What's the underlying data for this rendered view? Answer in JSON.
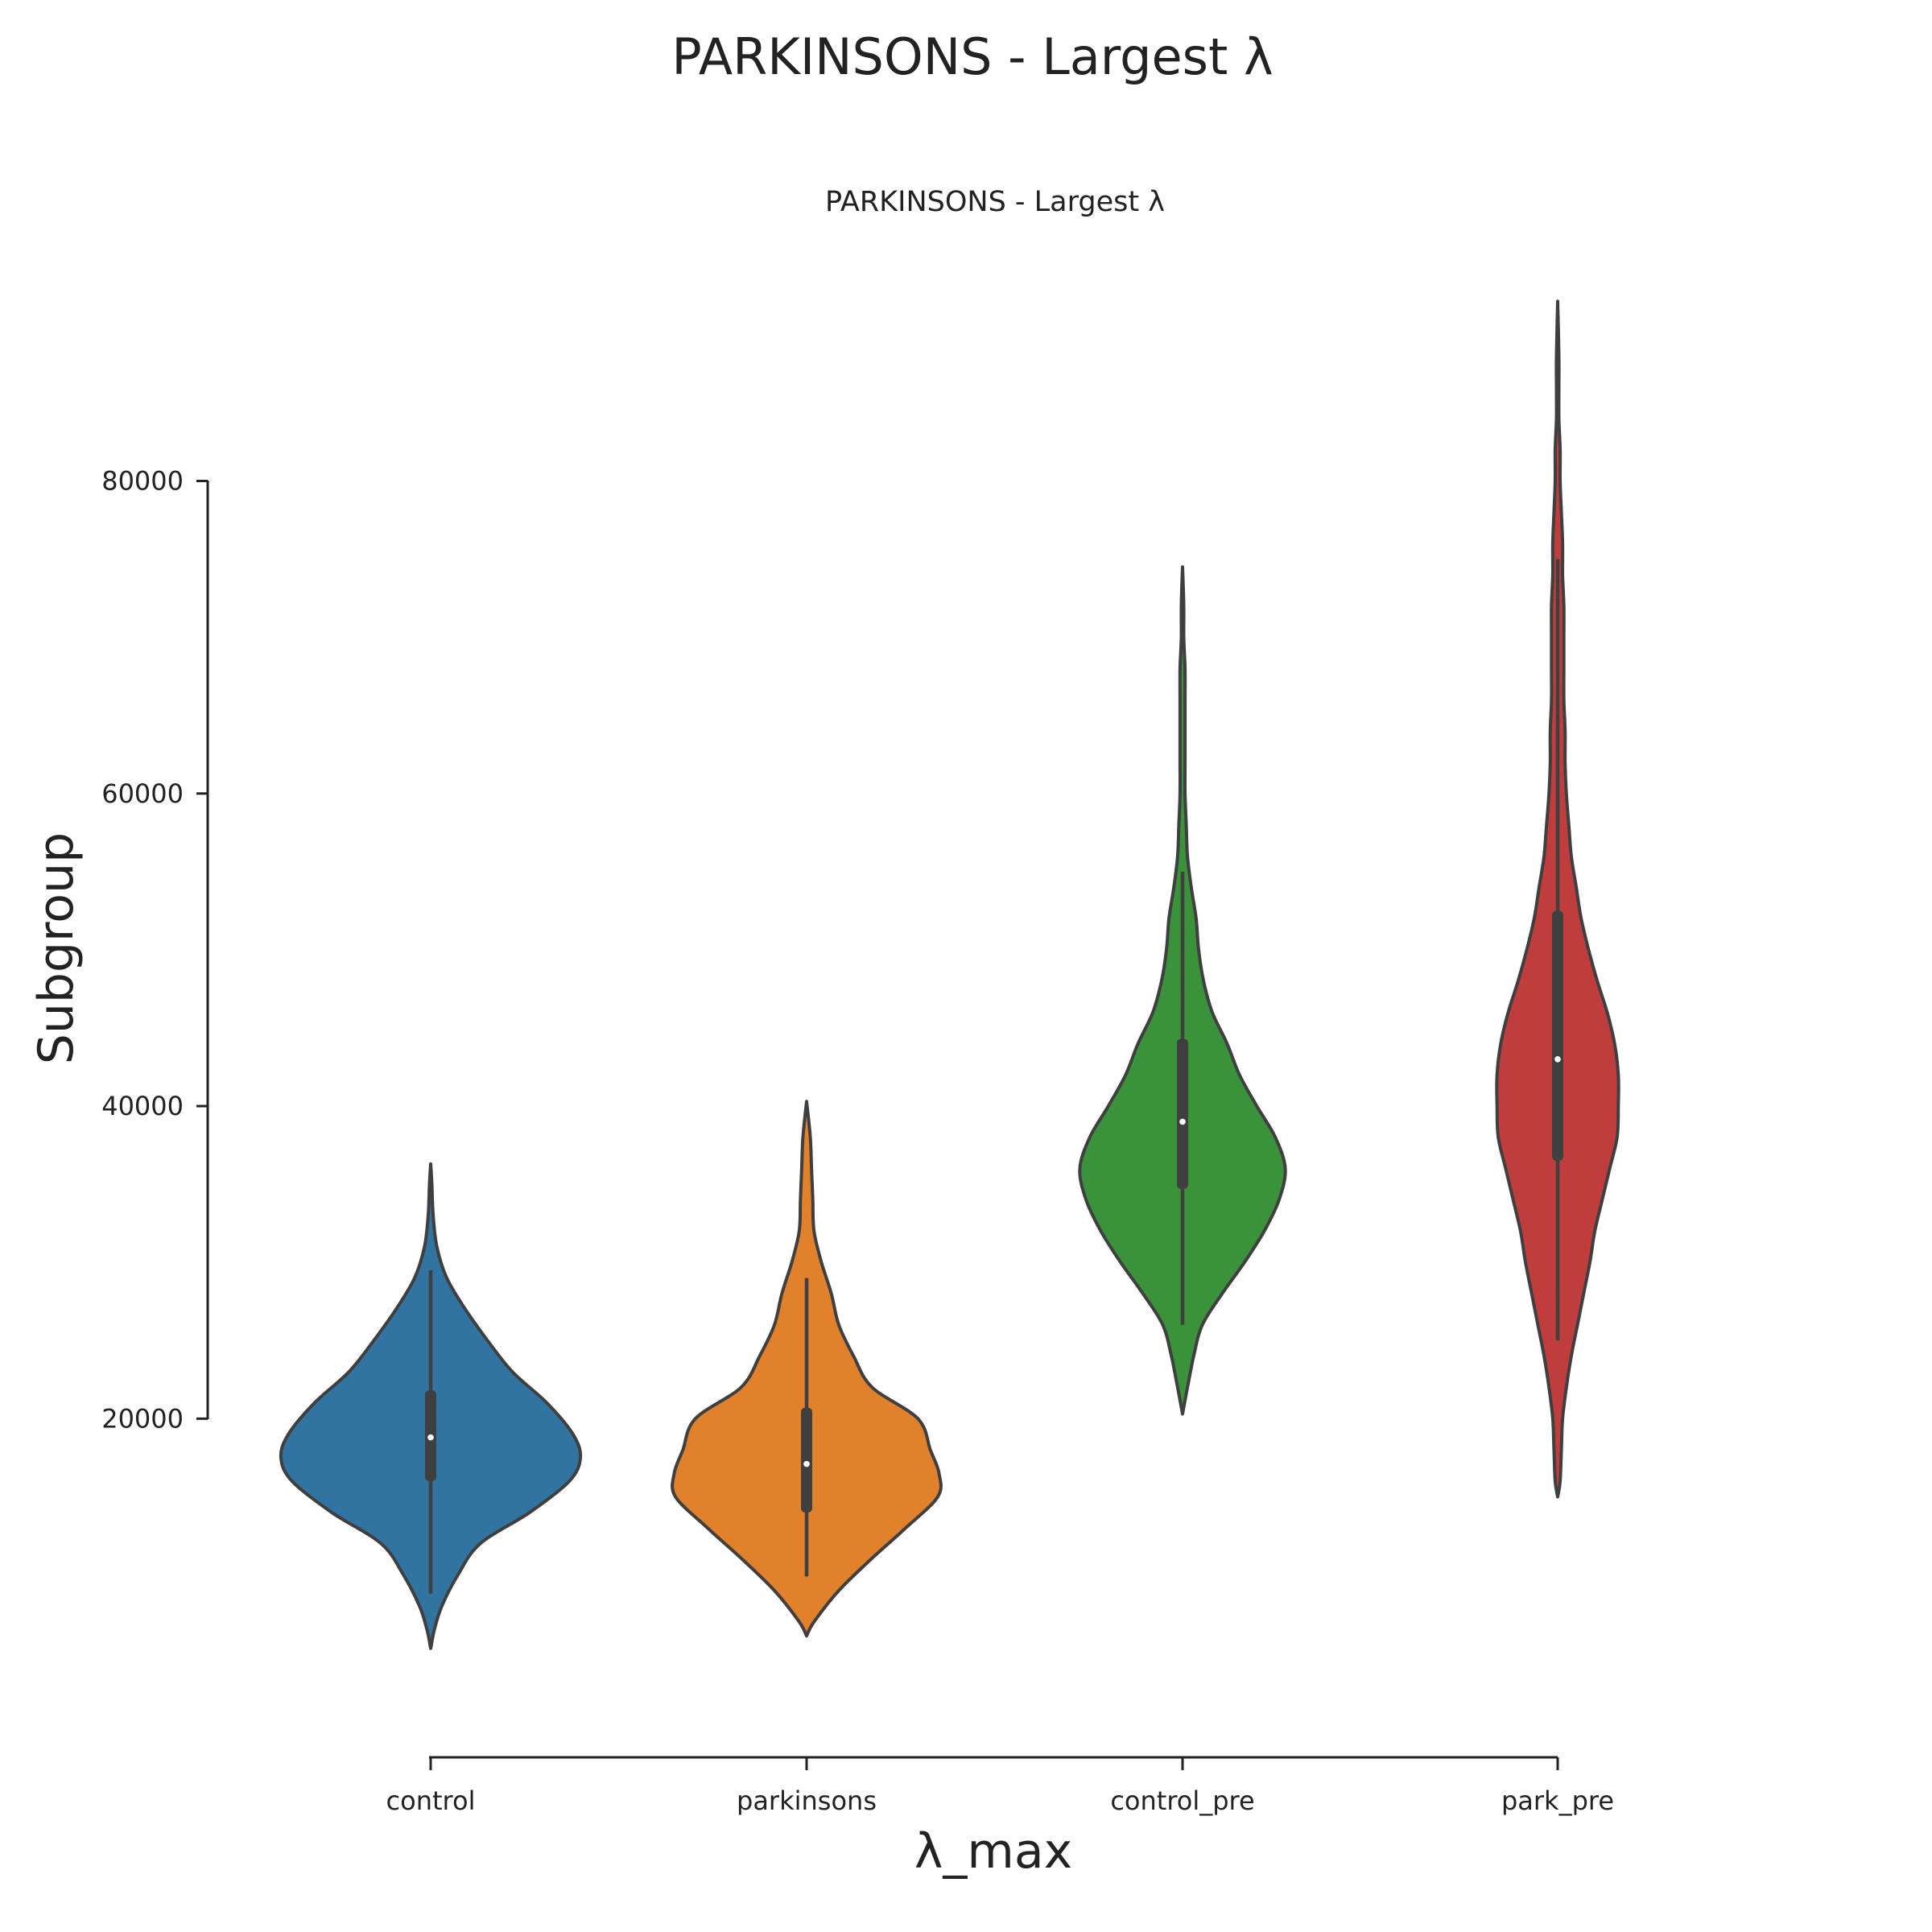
{
  "figure": {
    "suptitle": "PARKINSONS - Largest λ"
  },
  "chart_data": {
    "type": "violin",
    "title": "PARKINSONS - Largest λ",
    "xlabel": "λ_max",
    "ylabel": "Subgroup",
    "yticks": [
      20000,
      40000,
      60000,
      80000
    ],
    "ylim": [
      0,
      94000
    ],
    "grid": false,
    "legend": "none",
    "categories": [
      "control",
      "parkinsons",
      "control_pre",
      "park_pre"
    ],
    "colors": [
      "#3274a1",
      "#e1812c",
      "#3a923a",
      "#c03d3e"
    ],
    "violins": [
      {
        "category": "control",
        "color": "#3274a1",
        "whisker": [
          8800,
          29500
        ],
        "box": [
          16000,
          21800
        ],
        "median": 18800,
        "density": [
          [
            5300,
            0
          ],
          [
            6500,
            3
          ],
          [
            8000,
            9
          ],
          [
            10000,
            22
          ],
          [
            12000,
            40
          ],
          [
            14000,
            80
          ],
          [
            16000,
            112
          ],
          [
            17500,
            121
          ],
          [
            19000,
            115
          ],
          [
            21000,
            94
          ],
          [
            23000,
            66
          ],
          [
            25000,
            46
          ],
          [
            27000,
            28
          ],
          [
            29000,
            13
          ],
          [
            31000,
            5
          ],
          [
            33000,
            2
          ],
          [
            35000,
            1
          ],
          [
            36300,
            0
          ]
        ]
      },
      {
        "category": "parkinsons",
        "color": "#e1812c",
        "whisker": [
          9900,
          29000
        ],
        "box": [
          14000,
          20700
        ],
        "median": 17100,
        "density": [
          [
            6100,
            0
          ],
          [
            7000,
            6
          ],
          [
            9000,
            26
          ],
          [
            11000,
            52
          ],
          [
            13000,
            80
          ],
          [
            15000,
            106
          ],
          [
            16500,
            107
          ],
          [
            18000,
            100
          ],
          [
            20000,
            90
          ],
          [
            22000,
            53
          ],
          [
            24000,
            38
          ],
          [
            26000,
            26
          ],
          [
            28000,
            20
          ],
          [
            30000,
            12
          ],
          [
            32000,
            6
          ],
          [
            34000,
            5
          ],
          [
            36000,
            4
          ],
          [
            38000,
            3
          ],
          [
            40300,
            0
          ]
        ]
      },
      {
        "category": "control_pre",
        "color": "#3a923a",
        "whisker": [
          26000,
          55000
        ],
        "box": [
          34700,
          44300
        ],
        "median": 39000,
        "density": [
          [
            20300,
            0
          ],
          [
            22000,
            4
          ],
          [
            24000,
            9
          ],
          [
            26000,
            16
          ],
          [
            28000,
            32
          ],
          [
            30000,
            50
          ],
          [
            32000,
            66
          ],
          [
            34000,
            78
          ],
          [
            36000,
            83
          ],
          [
            38000,
            75
          ],
          [
            40000,
            60
          ],
          [
            42000,
            46
          ],
          [
            44000,
            36
          ],
          [
            46000,
            24
          ],
          [
            48000,
            17
          ],
          [
            50000,
            13
          ],
          [
            52000,
            11
          ],
          [
            54000,
            7
          ],
          [
            56000,
            4
          ],
          [
            58000,
            3
          ],
          [
            60000,
            2
          ],
          [
            62000,
            2
          ],
          [
            64000,
            2
          ],
          [
            66000,
            2
          ],
          [
            68000,
            2
          ],
          [
            70000,
            1
          ],
          [
            72000,
            1
          ],
          [
            74500,
            0
          ]
        ]
      },
      {
        "category": "park_pre",
        "color": "#c03d3e",
        "whisker": [
          25000,
          75000
        ],
        "box": [
          36500,
          52500
        ],
        "median": 43000,
        "density": [
          [
            15000,
            0
          ],
          [
            16000,
            2
          ],
          [
            18000,
            3
          ],
          [
            20000,
            4
          ],
          [
            22000,
            7
          ],
          [
            24000,
            11
          ],
          [
            26000,
            16
          ],
          [
            28000,
            21
          ],
          [
            30000,
            26
          ],
          [
            32000,
            30
          ],
          [
            34000,
            36
          ],
          [
            36000,
            42
          ],
          [
            38000,
            48
          ],
          [
            40000,
            49
          ],
          [
            42000,
            49
          ],
          [
            44000,
            46
          ],
          [
            46000,
            40
          ],
          [
            48000,
            32
          ],
          [
            50000,
            25
          ],
          [
            52000,
            19
          ],
          [
            54000,
            15
          ],
          [
            56000,
            11
          ],
          [
            58000,
            9
          ],
          [
            60000,
            7
          ],
          [
            62000,
            6
          ],
          [
            64000,
            6
          ],
          [
            66000,
            5
          ],
          [
            68000,
            5
          ],
          [
            70000,
            5
          ],
          [
            72000,
            5
          ],
          [
            74000,
            4
          ],
          [
            76000,
            4
          ],
          [
            78000,
            3
          ],
          [
            80000,
            2
          ],
          [
            82000,
            2
          ],
          [
            84000,
            1
          ],
          [
            86000,
            1
          ],
          [
            88000,
            1
          ],
          [
            91500,
            0
          ]
        ]
      }
    ]
  }
}
